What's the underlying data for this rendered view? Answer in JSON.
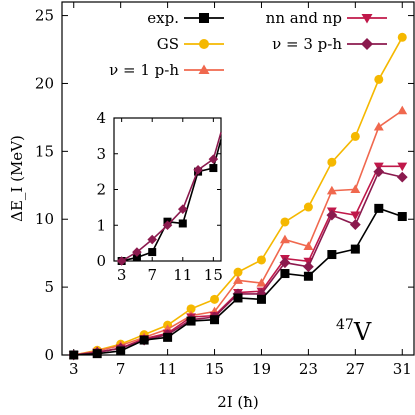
{
  "chart_data": [
    {
      "type": "line",
      "role": "main",
      "nucleus_label": "47V",
      "nucleus_mass": "47",
      "nucleus_symbol": "V",
      "xlabel": "2I (ħ)",
      "ylabel": "ΔE_I (MeV)",
      "xlim": [
        2,
        32
      ],
      "ylim": [
        0,
        26
      ],
      "xticks": [
        3,
        7,
        11,
        15,
        19,
        23,
        27,
        31
      ],
      "yticks": [
        0,
        5,
        10,
        15,
        20,
        25
      ],
      "grid": false,
      "legend_position": "top-right",
      "x": [
        3,
        5,
        7,
        9,
        11,
        13,
        15,
        17,
        19,
        21,
        23,
        25,
        27,
        29,
        31
      ],
      "series": [
        {
          "name": "GS",
          "color": "#F5B800",
          "marker": "circle",
          "values": [
            0,
            0.35,
            0.8,
            1.5,
            2.2,
            3.4,
            4.1,
            6.1,
            7.0,
            9.8,
            10.9,
            14.2,
            16.1,
            20.3,
            23.4
          ]
        },
        {
          "name": "ν = 1 p-h",
          "color": "#F0684E",
          "marker": "triangle-up",
          "values": [
            0,
            0.3,
            0.7,
            1.3,
            1.9,
            2.9,
            3.2,
            5.5,
            5.3,
            8.5,
            8.0,
            12.1,
            12.2,
            16.8,
            18.0
          ]
        },
        {
          "name": "nn and np",
          "color": "#C0184A",
          "marker": "triangle-down",
          "values": [
            0,
            0.2,
            0.5,
            1.2,
            1.6,
            2.8,
            2.9,
            4.6,
            4.7,
            7.1,
            6.9,
            10.6,
            10.3,
            13.9,
            13.9
          ]
        },
        {
          "name": "ν = 3 p-h",
          "color": "#8B1A4E",
          "marker": "diamond",
          "values": [
            0,
            0.2,
            0.5,
            1.1,
            1.5,
            2.6,
            2.8,
            4.5,
            4.5,
            6.8,
            6.5,
            10.3,
            9.6,
            13.5,
            13.1
          ]
        },
        {
          "name": "exp.",
          "color": "#000000",
          "marker": "square",
          "values": [
            0,
            0.1,
            0.3,
            1.1,
            1.3,
            2.5,
            2.6,
            4.2,
            4.1,
            6.0,
            5.8,
            7.4,
            7.8,
            10.8,
            10.2
          ]
        }
      ],
      "legend": [
        {
          "label": "exp.",
          "series": 4
        },
        {
          "label": "GS",
          "series": 0
        },
        {
          "label": "ν = 1 p-h",
          "series": 1
        },
        {
          "label": "nn and np",
          "series": 2
        },
        {
          "label": "ν = 3 p-h",
          "series": 3
        }
      ]
    },
    {
      "type": "line",
      "role": "inset",
      "xlim": [
        2,
        16
      ],
      "ylim": [
        0,
        4
      ],
      "xticks": [
        3,
        7,
        11,
        15
      ],
      "yticks": [
        0,
        1,
        2,
        3,
        4
      ],
      "x": [
        3,
        5,
        7,
        9,
        11,
        13,
        15,
        16
      ],
      "series": [
        {
          "name": "exp.",
          "color": "#000000",
          "marker": "square",
          "values": [
            0,
            0.1,
            0.25,
            1.1,
            1.05,
            2.5,
            2.6,
            3.4
          ]
        },
        {
          "name": "ν = 3 p-h",
          "color": "#8B1A4E",
          "marker": "diamond",
          "values": [
            0,
            0.25,
            0.6,
            1.0,
            1.45,
            2.55,
            2.85,
            3.6
          ]
        }
      ]
    }
  ]
}
